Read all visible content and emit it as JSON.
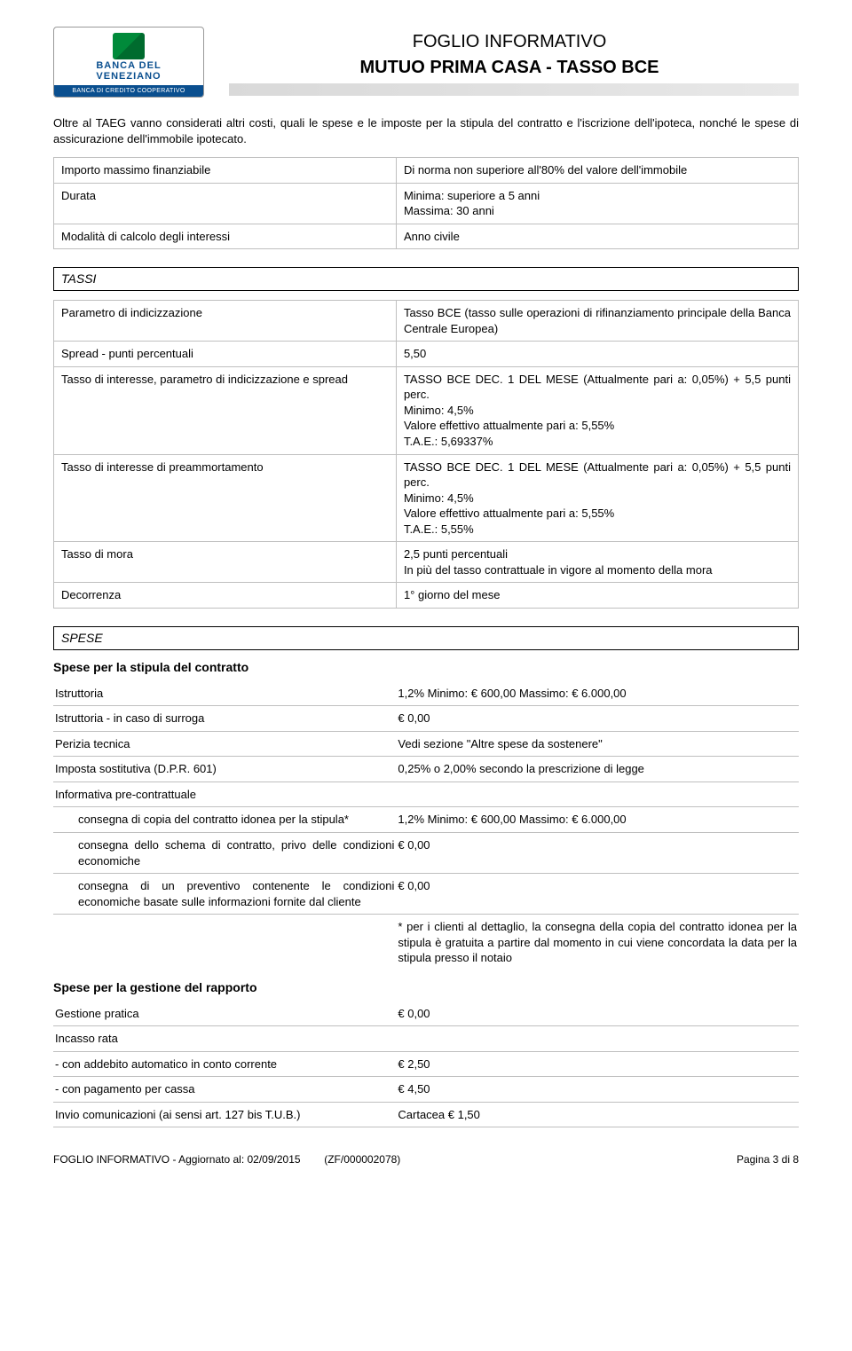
{
  "header": {
    "logo": {
      "line1": "BANCA DEL",
      "line2": "VENEZIANO",
      "band": "BANCA DI CREDITO COOPERATIVO"
    },
    "title1": "FOGLIO INFORMATIVO",
    "title2": "MUTUO PRIMA CASA - TASSO BCE"
  },
  "intro": "Oltre al TAEG vanno considerati altri costi, quali le spese e le imposte per la stipula del contratto e l'iscrizione dell'ipoteca, nonché le spese di assicurazione dell'immobile ipotecato.",
  "top_table": [
    {
      "l": "Importo massimo finanziabile",
      "r": "Di norma non superiore all'80% del valore dell'immobile"
    },
    {
      "l": "Durata",
      "r": "Minima: superiore a 5 anni\nMassima: 30 anni"
    },
    {
      "l": "Modalità di calcolo degli interessi",
      "r": "Anno civile"
    }
  ],
  "tassi": {
    "heading": "TASSI",
    "rows": [
      {
        "l": "Parametro di indicizzazione",
        "r": "Tasso BCE (tasso sulle operazioni di rifinanziamento principale della Banca Centrale Europea)"
      },
      {
        "l": "Spread - punti percentuali",
        "r": "5,50"
      },
      {
        "l": "Tasso di interesse, parametro di indicizzazione e spread",
        "r": "TASSO BCE DEC. 1 DEL MESE (Attualmente pari a: 0,05%) + 5,5 punti perc.\nMinimo:  4,5%\nValore effettivo attualmente pari a:  5,55%\nT.A.E.:  5,69337%"
      },
      {
        "l": "Tasso di interesse di preammortamento",
        "r": "TASSO BCE DEC. 1 DEL MESE (Attualmente pari a: 0,05%) + 5,5 punti perc.\nMinimo:  4,5%\nValore effettivo attualmente pari a:  5,55%\nT.A.E.:  5,55%"
      },
      {
        "l": "Tasso di mora",
        "r": "2,5 punti percentuali\nIn più del tasso contrattuale in vigore al momento della mora"
      },
      {
        "l": "Decorrenza",
        "r": "1° giorno del mese"
      }
    ]
  },
  "spese": {
    "heading": "SPESE",
    "stipula": {
      "subhead": "Spese per la stipula del contratto",
      "rows": [
        {
          "l": "Istruttoria",
          "r": "1,2% Minimo: €      600,00 Massimo: €      6.000,00"
        },
        {
          "l": "Istruttoria - in caso di surroga",
          "r": "€        0,00"
        },
        {
          "l": "Perizia tecnica",
          "r": "Vedi sezione \"Altre spese da sostenere\""
        },
        {
          "l": "Imposta sostitutiva (D.P.R. 601)",
          "r": "0,25% o 2,00% secondo la prescrizione di legge"
        }
      ],
      "precontr_label": "Informativa pre-contrattuale",
      "precontr": [
        {
          "l": "consegna di copia del contratto idonea per la stipula*",
          "r": "1,2% Minimo: €      600,00 Massimo: €      6.000,00"
        },
        {
          "l": "consegna dello schema di contratto, privo delle condizioni economiche",
          "r": "€        0,00"
        },
        {
          "l": "consegna di un preventivo contenente le condizioni economiche basate sulle informazioni fornite dal cliente",
          "r": "€        0,00"
        }
      ],
      "note": "* per i clienti al dettaglio, la consegna della copia del contratto idonea per la stipula è gratuita a partire dal momento in cui viene concordata la data per la stipula presso il notaio"
    },
    "gestione": {
      "subhead": "Spese per la gestione del rapporto",
      "rows": [
        {
          "l": "Gestione pratica",
          "r": "€        0,00"
        },
        {
          "l": "Incasso rata",
          "r": ""
        },
        {
          "l": "- con addebito automatico in conto corrente",
          "r": "€        2,50"
        },
        {
          "l": "- con pagamento per cassa",
          "r": "€        4,50"
        },
        {
          "l": "Invio comunicazioni (ai sensi art. 127 bis T.U.B.)",
          "r": "Cartacea € 1,50"
        }
      ]
    }
  },
  "footer": {
    "left": "FOGLIO INFORMATIVO - Aggiornato al: 02/09/2015",
    "mid": "(ZF/000002078)",
    "right": "Pagina 3 di 8"
  }
}
